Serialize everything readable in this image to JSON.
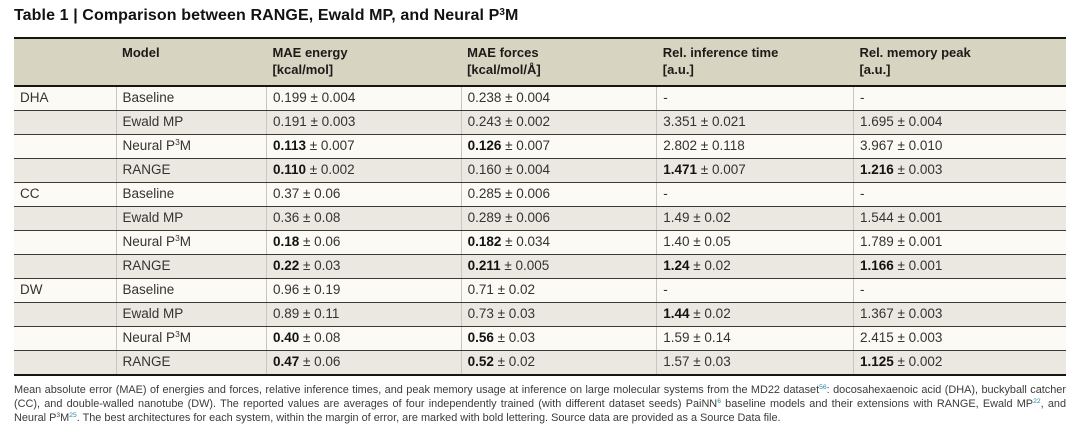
{
  "accent_color": "#2389a0",
  "header_bg_color": "#d7d4c2",
  "row_shade_color": "#eae8e1",
  "title": {
    "segments": [
      {
        "t": "Table 1 | Comparison between RANGE, Ewald MP, and Neural P"
      },
      {
        "t": "3",
        "sup": true
      },
      {
        "t": "M"
      }
    ]
  },
  "table": {
    "columns": [
      {
        "label": "",
        "sub": ""
      },
      {
        "label": "Model",
        "sub": ""
      },
      {
        "label": "MAE energy",
        "sub": "[kcal/mol]"
      },
      {
        "label": "MAE forces",
        "sub": "[kcal/mol/Å]"
      },
      {
        "label": "Rel. inference time",
        "sub": "[a.u.]"
      },
      {
        "label": "Rel. memory peak",
        "sub": "[a.u.]"
      }
    ],
    "rows": [
      {
        "system": "DHA",
        "model": [
          {
            "t": "Baseline"
          }
        ],
        "cells": [
          {
            "v": "0.199",
            "e": "0.004"
          },
          {
            "v": "0.238",
            "e": "0.004"
          },
          {
            "v": "-"
          },
          {
            "v": "-"
          }
        ]
      },
      {
        "system": "",
        "model": [
          {
            "t": "Ewald MP"
          }
        ],
        "cells": [
          {
            "v": "0.191",
            "e": "0.003"
          },
          {
            "v": "0.243",
            "e": "0.002"
          },
          {
            "v": "3.351",
            "e": "0.021"
          },
          {
            "v": "1.695",
            "e": "0.004"
          }
        ]
      },
      {
        "system": "",
        "model": [
          {
            "t": "Neural P"
          },
          {
            "t": "3",
            "sup": true
          },
          {
            "t": "M"
          }
        ],
        "cells": [
          {
            "v": "0.113",
            "e": "0.007",
            "b": true
          },
          {
            "v": "0.126",
            "e": "0.007",
            "b": true
          },
          {
            "v": "2.802",
            "e": "0.118"
          },
          {
            "v": "3.967",
            "e": "0.010"
          }
        ]
      },
      {
        "system": "",
        "model": [
          {
            "t": "RANGE"
          }
        ],
        "cells": [
          {
            "v": "0.110",
            "e": "0.002",
            "b": true
          },
          {
            "v": "0.160",
            "e": "0.004"
          },
          {
            "v": "1.471",
            "e": "0.007",
            "b": true
          },
          {
            "v": "1.216",
            "e": "0.003",
            "b": true
          }
        ]
      },
      {
        "system": "CC",
        "model": [
          {
            "t": "Baseline"
          }
        ],
        "cells": [
          {
            "v": "0.37",
            "e": "0.06"
          },
          {
            "v": "0.285",
            "e": "0.006"
          },
          {
            "v": "-"
          },
          {
            "v": "-"
          }
        ]
      },
      {
        "system": "",
        "model": [
          {
            "t": "Ewald MP"
          }
        ],
        "cells": [
          {
            "v": "0.36",
            "e": "0.08"
          },
          {
            "v": "0.289",
            "e": "0.006"
          },
          {
            "v": "1.49",
            "e": "0.02"
          },
          {
            "v": "1.544",
            "e": "0.001"
          }
        ]
      },
      {
        "system": "",
        "model": [
          {
            "t": "Neural P"
          },
          {
            "t": "3",
            "sup": true
          },
          {
            "t": "M"
          }
        ],
        "cells": [
          {
            "v": "0.18",
            "e": "0.06",
            "b": true
          },
          {
            "v": "0.182",
            "e": "0.034",
            "b": true
          },
          {
            "v": "1.40",
            "e": "0.05"
          },
          {
            "v": "1.789",
            "e": "0.001"
          }
        ]
      },
      {
        "system": "",
        "model": [
          {
            "t": "RANGE"
          }
        ],
        "cells": [
          {
            "v": "0.22",
            "e": "0.03",
            "b": true
          },
          {
            "v": "0.211",
            "e": "0.005",
            "b": true
          },
          {
            "v": "1.24",
            "e": "0.02",
            "b": true
          },
          {
            "v": "1.166",
            "e": "0.001",
            "b": true
          }
        ]
      },
      {
        "system": "DW",
        "model": [
          {
            "t": "Baseline"
          }
        ],
        "cells": [
          {
            "v": "0.96",
            "e": "0.19"
          },
          {
            "v": "0.71",
            "e": "0.02"
          },
          {
            "v": "-"
          },
          {
            "v": "-"
          }
        ]
      },
      {
        "system": "",
        "model": [
          {
            "t": "Ewald MP"
          }
        ],
        "cells": [
          {
            "v": "0.89",
            "e": "0.11"
          },
          {
            "v": "0.73",
            "e": "0.03"
          },
          {
            "v": "1.44",
            "e": "0.02",
            "b": true
          },
          {
            "v": "1.367",
            "e": "0.003"
          }
        ]
      },
      {
        "system": "",
        "model": [
          {
            "t": "Neural P"
          },
          {
            "t": "3",
            "sup": true
          },
          {
            "t": "M"
          }
        ],
        "cells": [
          {
            "v": "0.40",
            "e": "0.08",
            "b": true
          },
          {
            "v": "0.56",
            "e": "0.03",
            "b": true
          },
          {
            "v": "1.59",
            "e": "0.14"
          },
          {
            "v": "2.415",
            "e": "0.003"
          }
        ]
      },
      {
        "system": "",
        "model": [
          {
            "t": "RANGE"
          }
        ],
        "cells": [
          {
            "v": "0.47",
            "e": "0.06",
            "b": true
          },
          {
            "v": "0.52",
            "e": "0.02",
            "b": true
          },
          {
            "v": "1.57",
            "e": "0.03"
          },
          {
            "v": "1.125",
            "e": "0.002",
            "b": true
          }
        ]
      }
    ]
  },
  "footnote": {
    "segments": [
      {
        "t": "Mean absolute error (MAE) of energies and forces, relative inference times, and peak memory usage at inference on large molecular systems from the MD22 dataset"
      },
      {
        "t": "56",
        "sup": true,
        "accent": true
      },
      {
        "t": ": docosahexaenoic acid (DHA), buckyball catcher (CC), and double-walled nanotube (DW). The reported values are averages of four independently trained (with different dataset seeds) PaiNN"
      },
      {
        "t": "6",
        "sup": true,
        "accent": true
      },
      {
        "t": " baseline models and their extensions with RANGE, Ewald MP"
      },
      {
        "t": "22",
        "sup": true,
        "accent": true
      },
      {
        "t": ", and Neural P"
      },
      {
        "t": "3",
        "sup": true
      },
      {
        "t": "M"
      },
      {
        "t": "25",
        "sup": true,
        "accent": true
      },
      {
        "t": ". The best architectures for each system, within the margin of error, are marked with bold lettering. Source data are provided as a Source Data file."
      }
    ]
  }
}
